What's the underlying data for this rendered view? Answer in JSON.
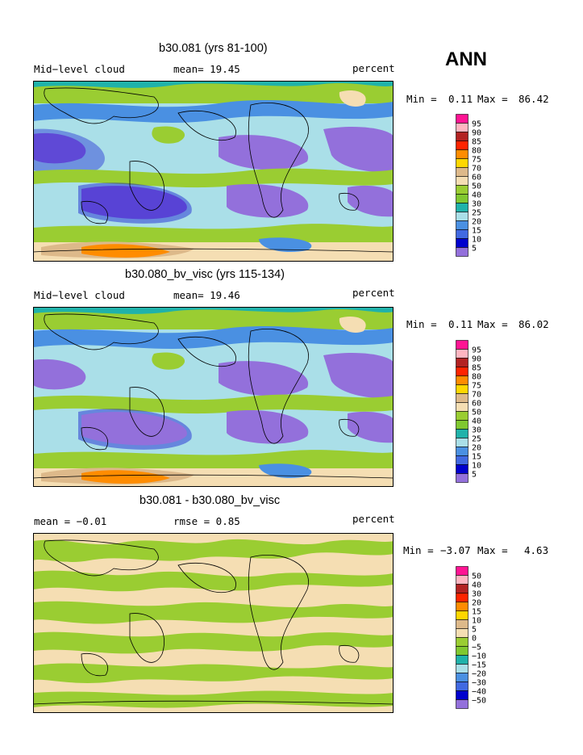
{
  "season": "ANN",
  "panels": [
    {
      "title": "b30.081 (yrs 81-100)",
      "left_label": "Mid−level cloud",
      "mean_label": "mean=  19.45",
      "units": "percent",
      "min_label": "Min =",
      "min_value": "0.11",
      "max_label": "Max =",
      "max_value": "86.42"
    },
    {
      "title": "b30.080_bv_visc (yrs 115-134)",
      "left_label": "Mid−level cloud",
      "mean_label": "mean=  19.46",
      "units": "percent",
      "min_label": "Min =",
      "min_value": "0.11",
      "max_label": "Max =",
      "max_value": "86.02"
    },
    {
      "title": "b30.081 - b30.080_bv_visc",
      "left_label": "mean =   −0.01",
      "mean_label": "rmse =    0.85",
      "units": "percent",
      "min_label": "Min =",
      "min_value": "−3.07",
      "max_label": "Max =",
      "max_value": "4.63"
    }
  ],
  "chart_data": [
    {
      "type": "heatmap",
      "title": "b30.081 (yrs 81-100)",
      "variable": "Mid−level cloud",
      "units": "percent",
      "mean": 19.45,
      "min": 0.11,
      "max": 86.42,
      "colorbar": {
        "levels": [
          "95",
          "90",
          "85",
          "80",
          "75",
          "70",
          "60",
          "50",
          "40",
          "30",
          "25",
          "20",
          "15",
          "10",
          "5"
        ],
        "colors": [
          "#ff1493",
          "#ffb6c1",
          "#b22222",
          "#ff2400",
          "#ff8c00",
          "#ffd700",
          "#ddb98a",
          "#f5deb3",
          "#9acd32",
          "#80c830",
          "#20b2aa",
          "#aadfe8",
          "#4a90e2",
          "#4169e1",
          "#0000cd",
          "#9370db"
        ]
      }
    },
    {
      "type": "heatmap",
      "title": "b30.080_bv_visc (yrs 115-134)",
      "variable": "Mid−level cloud",
      "units": "percent",
      "mean": 19.46,
      "min": 0.11,
      "max": 86.02,
      "colorbar": {
        "levels": [
          "95",
          "90",
          "85",
          "80",
          "75",
          "70",
          "60",
          "50",
          "40",
          "30",
          "25",
          "20",
          "15",
          "10",
          "5"
        ],
        "colors": [
          "#ff1493",
          "#ffb6c1",
          "#b22222",
          "#ff2400",
          "#ff8c00",
          "#ffd700",
          "#ddb98a",
          "#f5deb3",
          "#9acd32",
          "#80c830",
          "#20b2aa",
          "#aadfe8",
          "#4a90e2",
          "#4169e1",
          "#0000cd",
          "#9370db"
        ]
      }
    },
    {
      "type": "heatmap",
      "title": "b30.081 - b30.080_bv_visc",
      "units": "percent",
      "mean": -0.01,
      "rmse": 0.85,
      "min": -3.07,
      "max": 4.63,
      "colorbar": {
        "levels": [
          "50",
          "40",
          "30",
          "20",
          "15",
          "10",
          "5",
          "0",
          "−5",
          "−10",
          "−15",
          "−20",
          "−30",
          "−40",
          "−50"
        ],
        "colors": [
          "#ff1493",
          "#ffb6c1",
          "#b22222",
          "#ff2400",
          "#ff8c00",
          "#ffd700",
          "#ddb98a",
          "#f5deb3",
          "#9acd32",
          "#80c830",
          "#20b2aa",
          "#aadfe8",
          "#4a90e2",
          "#4169e1",
          "#0000cd",
          "#9370db"
        ]
      }
    }
  ]
}
